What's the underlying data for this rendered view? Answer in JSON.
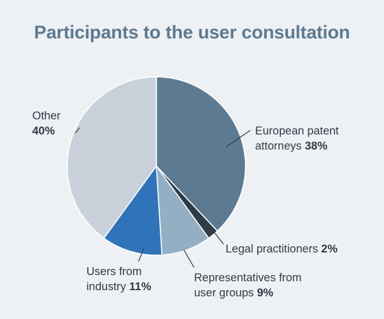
{
  "chart_data": {
    "type": "pie",
    "title": "Participants to the user consultation",
    "slices": [
      {
        "label_lines": [
          "European patent",
          "attorneys"
        ],
        "value": 38,
        "display": "38%",
        "color": "#5c7a91"
      },
      {
        "label_lines": [
          "Legal practitioners"
        ],
        "value": 2,
        "display": "2%",
        "color": "#2f3b47"
      },
      {
        "label_lines": [
          "Representatives from",
          "user groups"
        ],
        "value": 9,
        "display": "9%",
        "color": "#94afc4"
      },
      {
        "label_lines": [
          "Users from",
          "industry"
        ],
        "value": 11,
        "display": "11%",
        "color": "#2f74ba"
      },
      {
        "label_lines": [
          "Other"
        ],
        "value": 40,
        "display": "40%",
        "color": "#c9d2db"
      }
    ],
    "start_angle": "12 o'clock, clockwise",
    "legend": "none (direct labels)"
  }
}
